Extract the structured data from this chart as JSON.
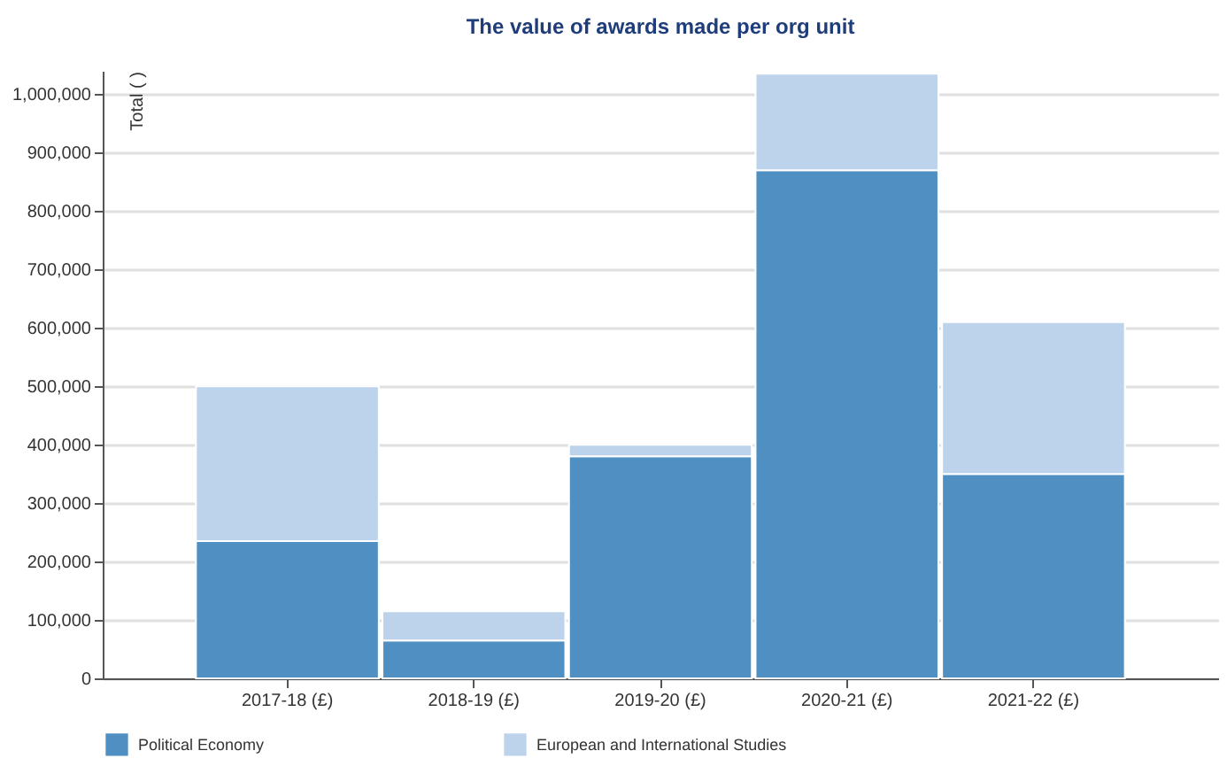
{
  "chart_data": {
    "type": "bar",
    "title": "The value of awards made per org unit",
    "ylabel": "Total ( )",
    "stacked": true,
    "categories": [
      "2017-18 (£)",
      "2018-19 (£)",
      "2019-20 (£)",
      "2020-21 (£)",
      "2021-22 (£)"
    ],
    "series": [
      {
        "name": "Political Economy",
        "color": "#4f8fc1",
        "values": [
          235000,
          65000,
          380000,
          870000,
          350000
        ]
      },
      {
        "name": "European and International Studies",
        "color": "#bdd3eb",
        "values": [
          265000,
          50000,
          20000,
          165000,
          260000
        ]
      }
    ],
    "ylim": [
      0,
      1040000
    ],
    "yticks": [
      0,
      {
        "value": 100000,
        "label": "100,000"
      },
      {
        "value": 200000,
        "label": "200,000"
      },
      {
        "value": 300000,
        "label": "300,000"
      },
      {
        "value": 400000,
        "label": "400,000"
      },
      {
        "value": 500000,
        "label": "500,000"
      },
      {
        "value": 600000,
        "label": "600,000"
      },
      {
        "value": 700000,
        "label": "700,000"
      },
      {
        "value": 800000,
        "label": "800,000"
      },
      {
        "value": 900000,
        "label": "900,000"
      },
      {
        "value": 1000000,
        "label": "1,000,000"
      }
    ],
    "grid": "y",
    "legend": "bottom"
  }
}
